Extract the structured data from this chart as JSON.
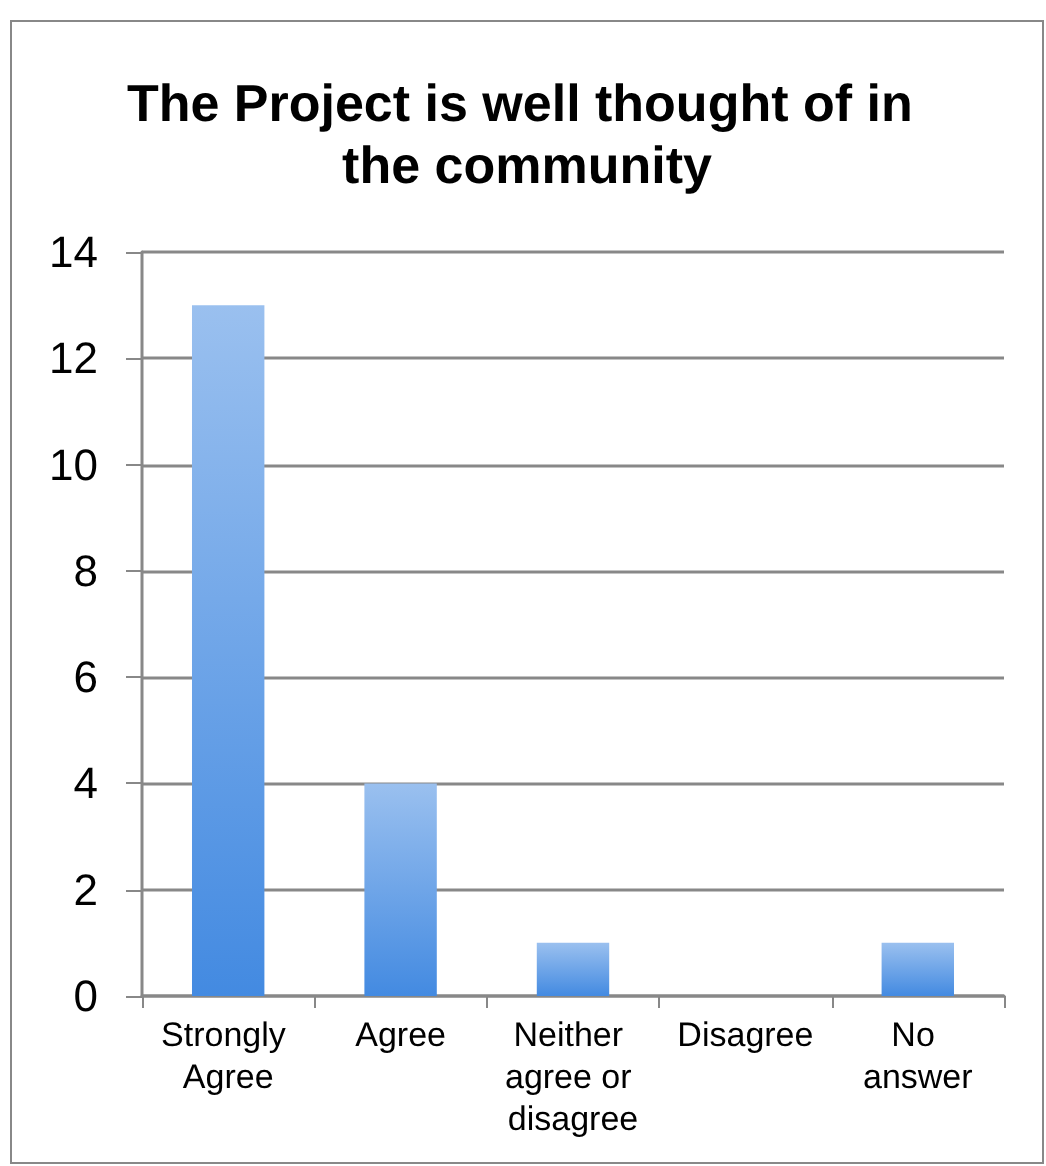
{
  "chart_data": {
    "type": "bar",
    "title": "The Project is well thought of in the community",
    "categories": [
      "Strongly Agree",
      "Agree",
      "Neither agree or disagree",
      "Disagree",
      "No answer"
    ],
    "values": [
      13,
      4,
      1,
      0,
      1
    ],
    "color": "#6ea5e8",
    "ylim": [
      0,
      14
    ],
    "yticks": [
      0,
      2,
      4,
      6,
      8,
      10,
      12,
      14
    ],
    "grid": "y"
  }
}
